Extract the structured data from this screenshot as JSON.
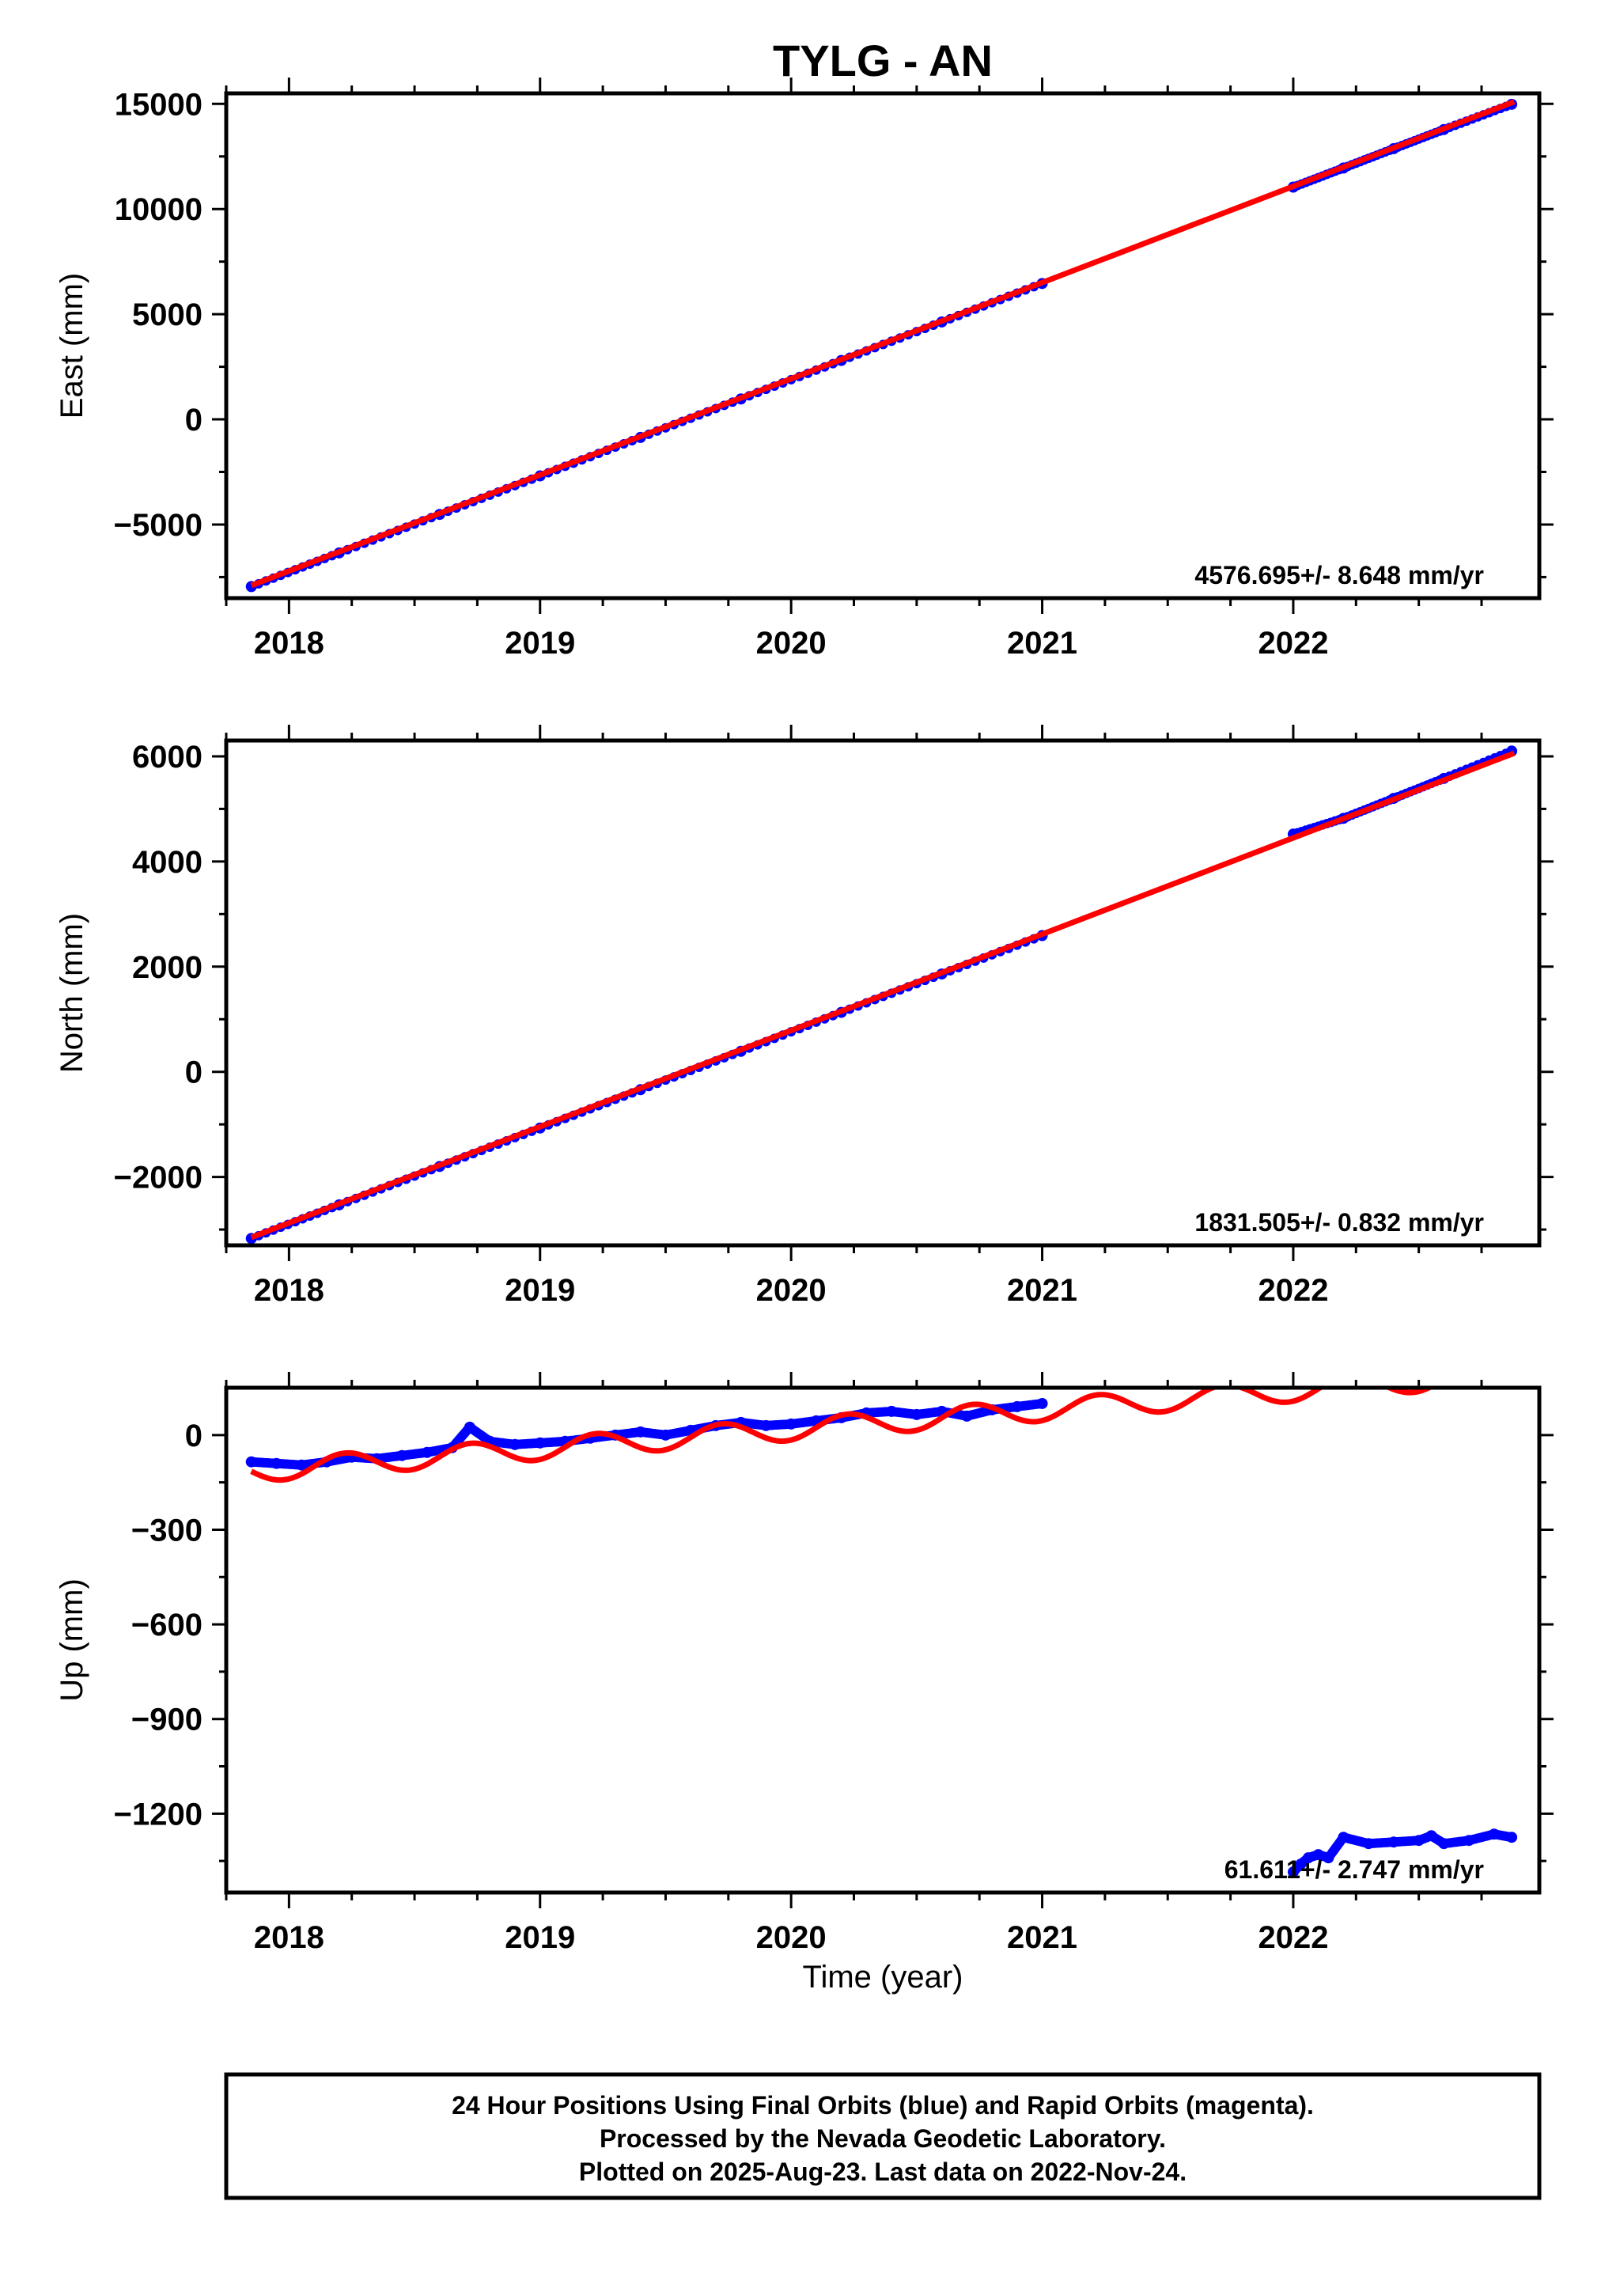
{
  "title": "TYLG - AN",
  "colors": {
    "data": "#0000ff",
    "model": "#ff0000",
    "frame": "#000000"
  },
  "caption": {
    "lines": [
      "24 Hour Positions Using Final Orbits (blue) and Rapid Orbits (magenta).",
      "Processed by the Nevada Geodetic Laboratory.",
      "Plotted on 2025-Aug-23. Last data on 2022-Nov-24."
    ]
  },
  "chart_data": [
    {
      "type": "scatter",
      "name": "east",
      "ylabel": "East (mm)",
      "xlabel": "",
      "xlim": [
        2017.75,
        2022.98
      ],
      "ylim": [
        -8500,
        15500
      ],
      "xticks": [
        2018,
        2019,
        2020,
        2021,
        2022
      ],
      "xtick_labels": [
        "2018",
        "2019",
        "2020",
        "2021",
        "2022"
      ],
      "yticks": [
        -5000,
        0,
        5000,
        10000,
        15000
      ],
      "ytick_labels": [
        "−5000",
        "0",
        "5000",
        "10000",
        "15000"
      ],
      "rate_label": "4576.695+/- 8.648 mm/yr",
      "series": [
        {
          "kind": "points",
          "x": [
            2017.85,
            2018.2,
            2018.6,
            2019.0,
            2019.4,
            2019.8,
            2020.2,
            2020.6,
            2021.0,
            2022.0,
            2022.2,
            2022.4,
            2022.6,
            2022.87
          ],
          "y": [
            -7950,
            -6350,
            -4520,
            -2690,
            -860,
            970,
            2800,
            4630,
            6460,
            11040,
            11950,
            12870,
            13780,
            14980
          ]
        },
        {
          "kind": "line",
          "x": [
            2017.85,
            2022.88
          ],
          "y": [
            -7900,
            15100
          ]
        }
      ]
    },
    {
      "type": "scatter",
      "name": "north",
      "ylabel": "North (mm)",
      "xlabel": "",
      "xlim": [
        2017.75,
        2022.98
      ],
      "ylim": [
        -3300,
        6300
      ],
      "xticks": [
        2018,
        2019,
        2020,
        2021,
        2022
      ],
      "xtick_labels": [
        "2018",
        "2019",
        "2020",
        "2021",
        "2022"
      ],
      "yticks": [
        -2000,
        0,
        2000,
        4000,
        6000
      ],
      "ytick_labels": [
        "−2000",
        "0",
        "2000",
        "4000",
        "6000"
      ],
      "rate_label": "1831.505+/- 0.832 mm/yr",
      "series": [
        {
          "kind": "points",
          "x": [
            2017.85,
            2018.2,
            2018.6,
            2019.0,
            2019.4,
            2019.8,
            2020.2,
            2020.6,
            2021.0,
            2022.0,
            2022.2,
            2022.4,
            2022.6,
            2022.87
          ],
          "y": [
            -3170,
            -2530,
            -1800,
            -1070,
            -340,
            390,
            1130,
            1860,
            2590,
            4520,
            4820,
            5200,
            5580,
            6100
          ]
        },
        {
          "kind": "line",
          "x": [
            2017.85,
            2022.88
          ],
          "y": [
            -3150,
            6060
          ]
        }
      ]
    },
    {
      "type": "scatter",
      "name": "up",
      "ylabel": "Up (mm)",
      "xlabel": "Time (year)",
      "xlim": [
        2017.75,
        2022.98
      ],
      "ylim": [
        -1450,
        150
      ],
      "xticks": [
        2018,
        2019,
        2020,
        2021,
        2022
      ],
      "xtick_labels": [
        "2018",
        "2019",
        "2020",
        "2021",
        "2022"
      ],
      "yticks": [
        -1200,
        -900,
        -600,
        -300,
        0
      ],
      "ytick_labels": [
        "−1200",
        "−900",
        "−600",
        "−300",
        "0"
      ],
      "rate_label": "61.611+/- 2.747 mm/yr",
      "series": [
        {
          "kind": "points",
          "x": [
            2017.85,
            2017.95,
            2018.05,
            2018.15,
            2018.25,
            2018.35,
            2018.45,
            2018.55,
            2018.65,
            2018.72,
            2018.8,
            2018.9,
            2019.0,
            2019.1,
            2019.2,
            2019.3,
            2019.4,
            2019.5,
            2019.6,
            2019.7,
            2019.8,
            2019.9,
            2020.0,
            2020.1,
            2020.2,
            2020.3,
            2020.4,
            2020.5,
            2020.6,
            2020.7,
            2020.8,
            2020.9,
            2021.0,
            2022.0,
            2022.03,
            2022.06,
            2022.1,
            2022.14,
            2022.2,
            2022.3,
            2022.4,
            2022.5,
            2022.55,
            2022.6,
            2022.7,
            2022.8,
            2022.87
          ],
          "y": [
            -85,
            -90,
            -95,
            -85,
            -70,
            -75,
            -65,
            -55,
            -40,
            25,
            -20,
            -30,
            -25,
            -20,
            -10,
            0,
            10,
            0,
            15,
            30,
            40,
            30,
            35,
            45,
            55,
            70,
            75,
            65,
            75,
            60,
            80,
            90,
            100,
            -1385,
            -1360,
            -1340,
            -1330,
            -1340,
            -1275,
            -1295,
            -1290,
            -1285,
            -1270,
            -1295,
            -1285,
            -1265,
            -1275
          ]
        },
        {
          "kind": "line",
          "model": "sine",
          "x_start": 2017.85,
          "x_end": 2022.88,
          "y0": -115,
          "slope": 61.611,
          "amplitude": 35,
          "period_years": 0.5
        }
      ]
    }
  ]
}
